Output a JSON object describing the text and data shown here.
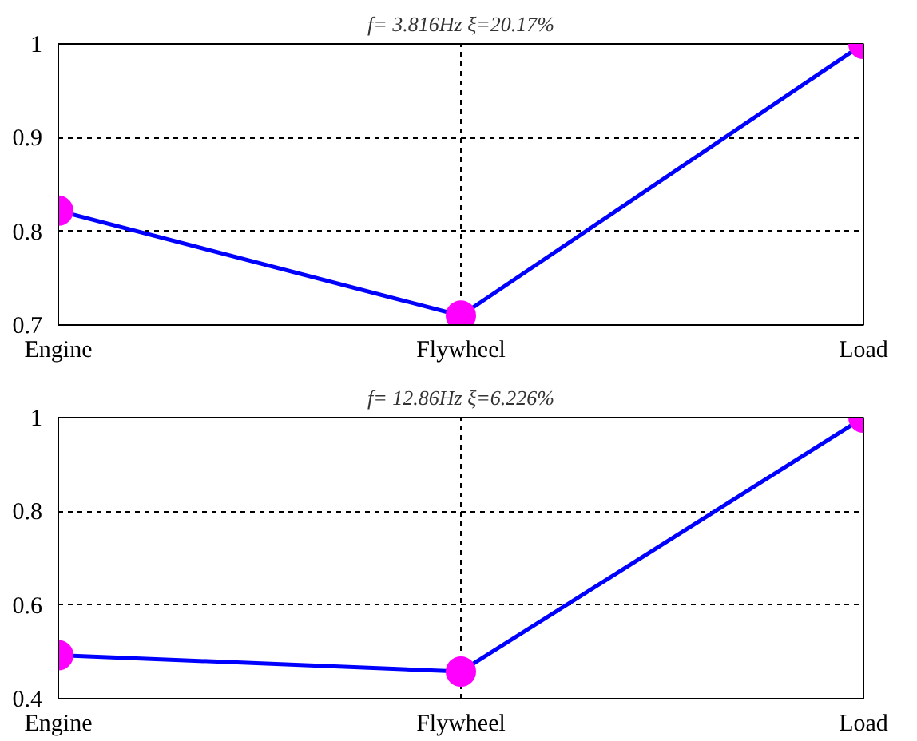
{
  "chart_data": [
    {
      "type": "line",
      "title": "f= 3.816Hz ξ=20.17%",
      "categories": [
        "Engine",
        "Flywheel",
        "Load"
      ],
      "series": [
        {
          "color": "#0000ff",
          "colors": [
            "#ff00ff",
            "#ff00ff",
            "#ff00ff"
          ],
          "values": [
            0.822,
            0.71,
            1
          ]
        }
      ],
      "ylim": [
        0.7,
        1
      ],
      "yticks": [
        0.7,
        0.8,
        0.9,
        1
      ],
      "grid": true,
      "marker": "circle",
      "line_style": "solid"
    },
    {
      "type": "line",
      "title": "f= 12.86Hz ξ=6.226%",
      "categories": [
        "Engine",
        "Flywheel",
        "Load"
      ],
      "series": [
        {
          "color": "#0000ff",
          "colors": [
            "#ff00ff",
            "#ff00ff",
            "#ff00ff"
          ],
          "values": [
            0.493,
            0.458,
            1
          ]
        }
      ],
      "ylim": [
        0.4,
        1
      ],
      "yticks": [
        0.4,
        0.6,
        0.8,
        1
      ],
      "grid": true,
      "marker": "circle",
      "line_style": "solid"
    }
  ]
}
